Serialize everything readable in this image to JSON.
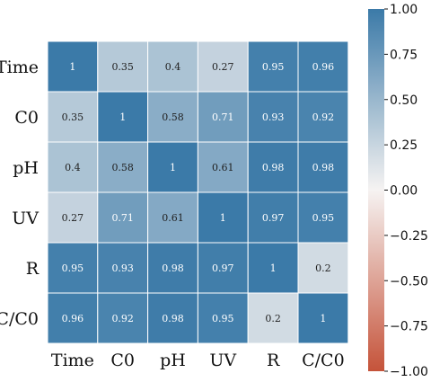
{
  "chart_data": {
    "type": "heatmap",
    "title": "",
    "xlabel": "",
    "ylabel": "",
    "row_labels": [
      "Time",
      "C0",
      "pH",
      "UV",
      "R",
      "C/C0"
    ],
    "col_labels": [
      "Time",
      "C0",
      "pH",
      "UV",
      "R",
      "C/C0"
    ],
    "values": [
      [
        1,
        0.35,
        0.4,
        0.27,
        0.95,
        0.96
      ],
      [
        0.35,
        1,
        0.58,
        0.71,
        0.93,
        0.92
      ],
      [
        0.4,
        0.58,
        1,
        0.61,
        0.98,
        0.98
      ],
      [
        0.27,
        0.71,
        0.61,
        1,
        0.97,
        0.95
      ],
      [
        0.95,
        0.93,
        0.98,
        0.97,
        1,
        0.2
      ],
      [
        0.96,
        0.92,
        0.98,
        0.95,
        0.2,
        1
      ]
    ],
    "annotated": true,
    "value_range": [
      -1,
      1
    ],
    "colorbar": {
      "ticks": [
        "1.00",
        "0.75",
        "0.50",
        "0.25",
        "0.00",
        "−0.25",
        "−0.50",
        "−0.75",
        "−1.00"
      ],
      "tick_values": [
        1,
        0.75,
        0.5,
        0.25,
        0,
        -0.25,
        -0.5,
        -0.75,
        -1
      ],
      "position": "right"
    },
    "colors": {
      "negative": "#c5533a",
      "neutral": "#f6f3f2",
      "positive": "#3b7aa8",
      "cell_border": "#ffffff"
    }
  }
}
